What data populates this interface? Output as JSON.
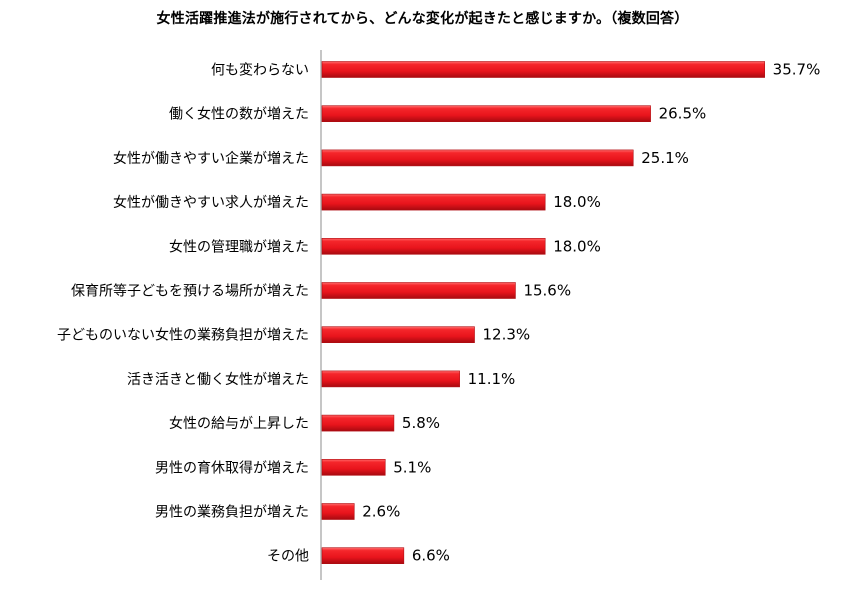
{
  "chart_data": {
    "type": "bar",
    "orientation": "horizontal",
    "title": "女性活躍推進法が施行されてから、どんな変化が起きたと感じますか。（複数回答）",
    "categories": [
      "何も変わらない",
      "働く女性の数が増えた",
      "女性が働きやすい企業が増えた",
      "女性が働きやすい求人が増えた",
      "女性の管理職が増えた",
      "保育所等子どもを預ける場所が増えた",
      "子どものいない女性の業務負担が増えた",
      "活き活きと働く女性が増えた",
      "女性の給与が上昇した",
      "男性の育休取得が増えた",
      "男性の業務負担が増えた",
      "その他"
    ],
    "values": [
      35.7,
      26.5,
      25.1,
      18.0,
      18.0,
      15.6,
      12.3,
      11.1,
      5.8,
      5.1,
      2.6,
      6.6
    ],
    "value_labels": [
      "35.7%",
      "26.5%",
      "25.1%",
      "18.0%",
      "18.0%",
      "15.6%",
      "12.3%",
      "11.1%",
      "5.8%",
      "5.1%",
      "2.6%",
      "6.6%"
    ],
    "unit": "%",
    "xlim": [
      0,
      40
    ],
    "bar_color": "#e8141c",
    "grid": false,
    "legend": "none"
  }
}
